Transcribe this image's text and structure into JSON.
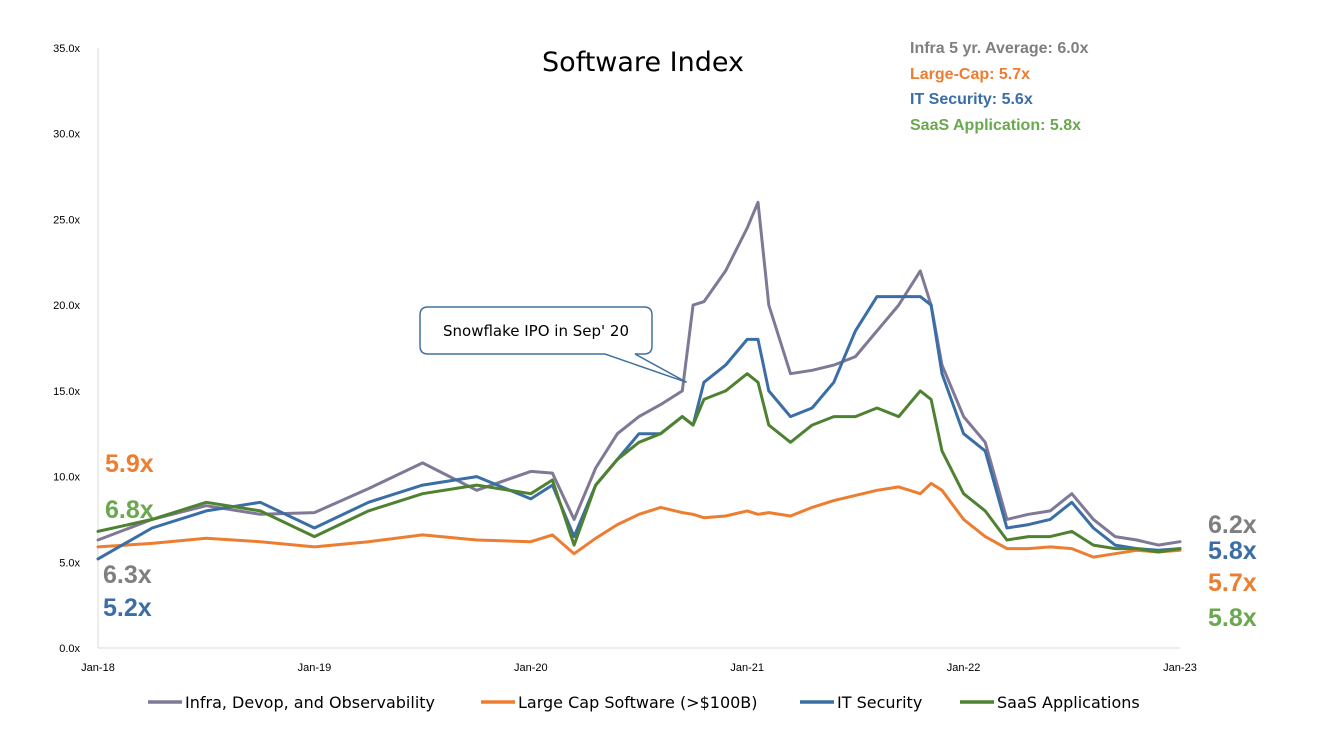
{
  "chart_data": {
    "type": "line",
    "title": "Software Index",
    "ylim": [
      0,
      35
    ],
    "y_ticks": [
      "0.0x",
      "5.0x",
      "10.0x",
      "15.0x",
      "20.0x",
      "25.0x",
      "30.0x",
      "35.0x"
    ],
    "x_ticks": [
      "Jan-18",
      "Jan-19",
      "Jan-20",
      "Jan-21",
      "Jan-22",
      "Jan-23"
    ],
    "grid": false,
    "legend_position": "bottom",
    "x": [
      2018.0,
      2018.25,
      2018.5,
      2018.75,
      2019.0,
      2019.25,
      2019.5,
      2019.75,
      2020.0,
      2020.1,
      2020.2,
      2020.3,
      2020.4,
      2020.5,
      2020.6,
      2020.7,
      2020.75,
      2020.8,
      2020.9,
      2021.0,
      2021.05,
      2021.1,
      2021.2,
      2021.3,
      2021.4,
      2021.5,
      2021.6,
      2021.7,
      2021.8,
      2021.85,
      2021.9,
      2022.0,
      2022.1,
      2022.2,
      2022.3,
      2022.4,
      2022.5,
      2022.6,
      2022.7,
      2022.8,
      2022.9,
      2023.0
    ],
    "series": [
      {
        "name": "Infra, Devop, and Observability",
        "color": "#7f7896",
        "values": [
          6.3,
          7.5,
          8.3,
          7.8,
          7.9,
          9.3,
          10.8,
          9.2,
          10.3,
          10.2,
          7.5,
          10.5,
          12.5,
          13.5,
          14.2,
          15.0,
          20.0,
          20.2,
          22.0,
          24.5,
          26.0,
          20.0,
          16.0,
          16.2,
          16.5,
          17.0,
          18.5,
          20.0,
          22.0,
          20.0,
          16.5,
          13.5,
          12.0,
          7.5,
          7.8,
          8.0,
          9.0,
          7.5,
          6.5,
          6.3,
          6.0,
          6.2
        ]
      },
      {
        "name": "Large Cap Software (>$100B)",
        "color": "#ed7d31",
        "values": [
          5.9,
          6.1,
          6.4,
          6.2,
          5.9,
          6.2,
          6.6,
          6.3,
          6.2,
          6.6,
          5.5,
          6.4,
          7.2,
          7.8,
          8.2,
          7.9,
          7.8,
          7.6,
          7.7,
          8.0,
          7.8,
          7.9,
          7.7,
          8.2,
          8.6,
          8.9,
          9.2,
          9.4,
          9.0,
          9.6,
          9.2,
          7.5,
          6.5,
          5.8,
          5.8,
          5.9,
          5.8,
          5.3,
          5.5,
          5.7,
          5.6,
          5.7
        ]
      },
      {
        "name": "IT Security",
        "color": "#3a6ea5",
        "values": [
          5.2,
          7.0,
          8.0,
          8.5,
          7.0,
          8.5,
          9.5,
          10.0,
          8.7,
          9.5,
          6.5,
          9.5,
          11.0,
          12.5,
          12.5,
          13.5,
          13.0,
          15.5,
          16.5,
          18.0,
          18.0,
          15.0,
          13.5,
          14.0,
          15.5,
          18.5,
          20.5,
          20.5,
          20.5,
          20.0,
          16.0,
          12.5,
          11.5,
          7.0,
          7.2,
          7.5,
          8.5,
          7.0,
          6.0,
          5.8,
          5.7,
          5.8
        ]
      },
      {
        "name": "SaaS Applications",
        "color": "#4e8230",
        "values": [
          6.8,
          7.5,
          8.5,
          8.0,
          6.5,
          8.0,
          9.0,
          9.5,
          9.0,
          9.8,
          6.0,
          9.5,
          11.0,
          12.0,
          12.5,
          13.5,
          13.0,
          14.5,
          15.0,
          16.0,
          15.5,
          13.0,
          12.0,
          13.0,
          13.5,
          13.5,
          14.0,
          13.5,
          15.0,
          14.5,
          11.5,
          9.0,
          8.0,
          6.3,
          6.5,
          6.5,
          6.8,
          6.0,
          5.8,
          5.8,
          5.6,
          5.8
        ]
      }
    ],
    "annotations": {
      "averages": [
        {
          "text": "Infra 5 yr. Average: 6.0x",
          "color": "#7f7f7f"
        },
        {
          "text": "Large-Cap: 5.7x",
          "color": "#ed7d31"
        },
        {
          "text": "IT Security: 5.6x",
          "color": "#3a6ea5"
        },
        {
          "text": "SaaS Application: 5.8x",
          "color": "#6aa84f"
        }
      ],
      "start_labels": [
        {
          "text": "5.9x",
          "color": "#ed7d31"
        },
        {
          "text": "6.8x",
          "color": "#6aa84f"
        },
        {
          "text": "6.3x",
          "color": "#7f7f7f"
        },
        {
          "text": "5.2x",
          "color": "#3a6ea5"
        }
      ],
      "end_labels": [
        {
          "text": "6.2x",
          "color": "#7f7f7f"
        },
        {
          "text": "5.8x",
          "color": "#3a6ea5"
        },
        {
          "text": "5.7x",
          "color": "#ed7d31"
        },
        {
          "text": "5.8x",
          "color": "#6aa84f"
        }
      ],
      "callout": {
        "text": "Snowflake IPO in Sep' 20",
        "x": 2020.72,
        "y": 15.5
      }
    }
  }
}
